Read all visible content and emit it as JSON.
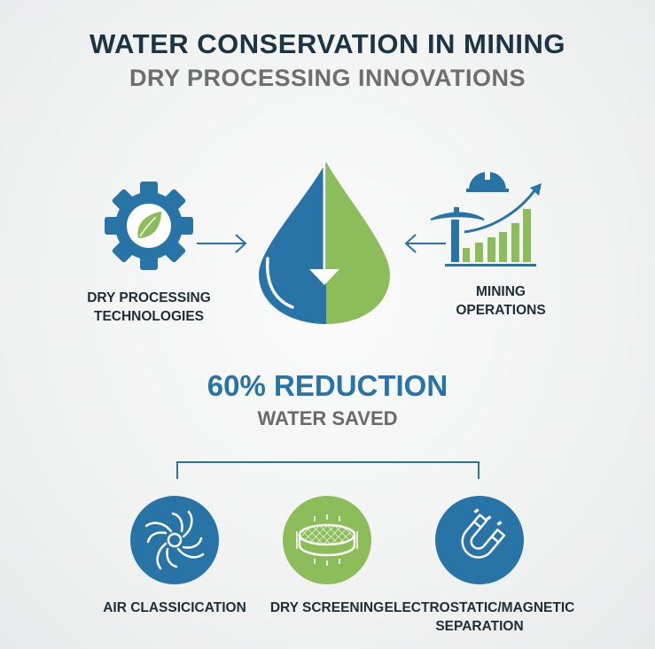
{
  "title": "WATER CONSERVATION IN MINING",
  "subtitle": "DRY PROCESSING INNOVATIONS",
  "colors": {
    "blue": "#2874a6",
    "green": "#8cbd5a",
    "title": "#1d3443",
    "gray": "#6e6e6e"
  },
  "inputs": [
    {
      "label_line1": "DRY PROCESSING",
      "label_line2": "TECHNOLOGIES",
      "icon": "gear-leaf-icon"
    },
    {
      "label_line1": "MINING",
      "label_line2": "OPERATIONS",
      "icon": "mining-growth-chart-icon"
    }
  ],
  "center_icon": "water-drop-icon",
  "stat": {
    "value": "60% REDUCTION",
    "caption": "WATER SAVED"
  },
  "methods": [
    {
      "label": "AIR CLASSICICATION",
      "icon": "air-swirl-icon"
    },
    {
      "label": "DRY SCREENING",
      "icon": "screen-sieve-icon"
    },
    {
      "label_line1": "ELECTROSTATIC/MAGNETIC",
      "label_line2": "SEPARATION",
      "icon": "magnet-icon"
    }
  ]
}
